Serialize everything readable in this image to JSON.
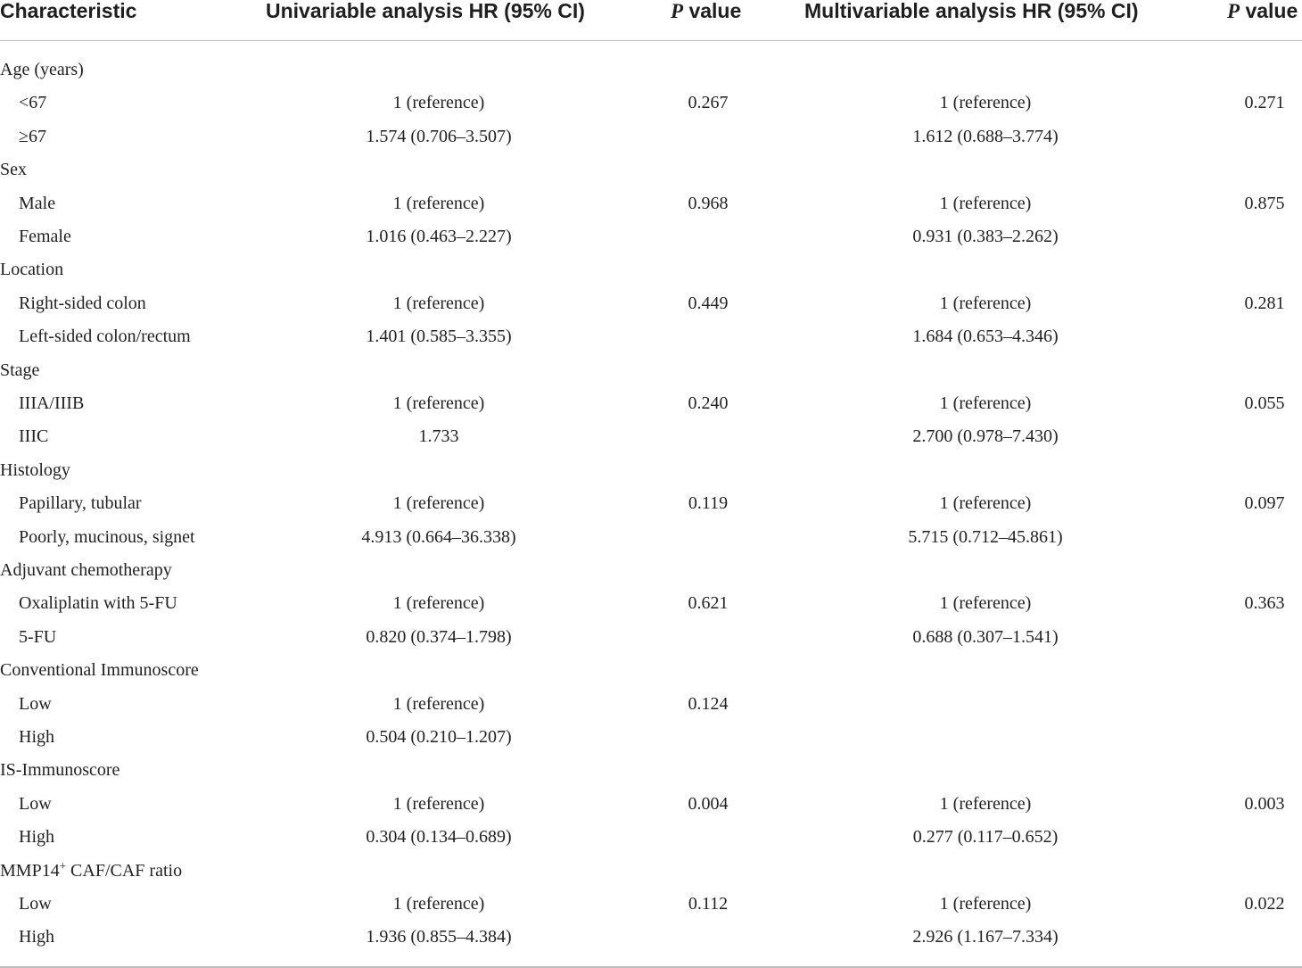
{
  "header": {
    "characteristic": "Characteristic",
    "univariable": "Univariable analysis HR (95% CI)",
    "p_italic": "P",
    "p_rest": " value",
    "multivariable": "Multivariable analysis HR (95% CI)"
  },
  "rows": [
    {
      "label": "Age (years)",
      "group": true
    },
    {
      "label": "<67",
      "uni": "1 (reference)",
      "uni_p": "0.267",
      "multi": "1 (reference)",
      "multi_p": "0.271"
    },
    {
      "label": "≥67",
      "uni": "1.574 (0.706–3.507)",
      "multi": "1.612 (0.688–3.774)"
    },
    {
      "label": "Sex",
      "group": true
    },
    {
      "label": "Male",
      "uni": "1 (reference)",
      "uni_p": "0.968",
      "multi": "1 (reference)",
      "multi_p": "0.875"
    },
    {
      "label": "Female",
      "uni": "1.016 (0.463–2.227)",
      "multi": "0.931 (0.383–2.262)"
    },
    {
      "label": "Location",
      "group": true
    },
    {
      "label": "Right-sided colon",
      "uni": "1 (reference)",
      "uni_p": "0.449",
      "multi": "1 (reference)",
      "multi_p": "0.281"
    },
    {
      "label": "Left-sided colon/rectum",
      "uni": "1.401 (0.585–3.355)",
      "multi": "1.684 (0.653–4.346)"
    },
    {
      "label": "Stage",
      "group": true
    },
    {
      "label": "IIIA/IIIB",
      "uni": "1 (reference)",
      "uni_p": "0.240",
      "multi": "1 (reference)",
      "multi_p": "0.055"
    },
    {
      "label": "IIIC",
      "uni": "1.733",
      "multi": "2.700 (0.978–7.430)"
    },
    {
      "label": "Histology",
      "group": true
    },
    {
      "label": "Papillary, tubular",
      "uni": "1 (reference)",
      "uni_p": "0.119",
      "multi": "1 (reference)",
      "multi_p": "0.097"
    },
    {
      "label": "Poorly, mucinous, signet",
      "uni": "4.913 (0.664–36.338)",
      "multi": "5.715 (0.712–45.861)"
    },
    {
      "label": "Adjuvant chemotherapy",
      "group": true
    },
    {
      "label": "Oxaliplatin with 5-FU",
      "uni": "1 (reference)",
      "uni_p": "0.621",
      "multi": "1 (reference)",
      "multi_p": "0.363"
    },
    {
      "label": "5-FU",
      "uni": "0.820 (0.374–1.798)",
      "multi": "0.688 (0.307–1.541)"
    },
    {
      "label": "Conventional Immunoscore",
      "group": true
    },
    {
      "label": "Low",
      "uni": "1 (reference)",
      "uni_p": "0.124"
    },
    {
      "label": "High",
      "uni": "0.504 (0.210–1.207)"
    },
    {
      "label": "IS-Immunoscore",
      "group": true
    },
    {
      "label": "Low",
      "uni": "1 (reference)",
      "uni_p": "0.004",
      "multi": "1 (reference)",
      "multi_p": "0.003"
    },
    {
      "label": "High",
      "uni": "0.304 (0.134–0.689)",
      "multi": "0.277 (0.117–0.652)"
    },
    {
      "label": "MMP14",
      "label_sup": "+",
      "label_after": " CAF/CAF ratio",
      "group": true
    },
    {
      "label": "Low",
      "uni": "1 (reference)",
      "uni_p": "0.112",
      "multi": "1 (reference)",
      "multi_p": "0.022"
    },
    {
      "label": "High",
      "uni": "1.936 (0.855–4.384)",
      "multi": "2.926 (1.167–7.334)"
    }
  ]
}
